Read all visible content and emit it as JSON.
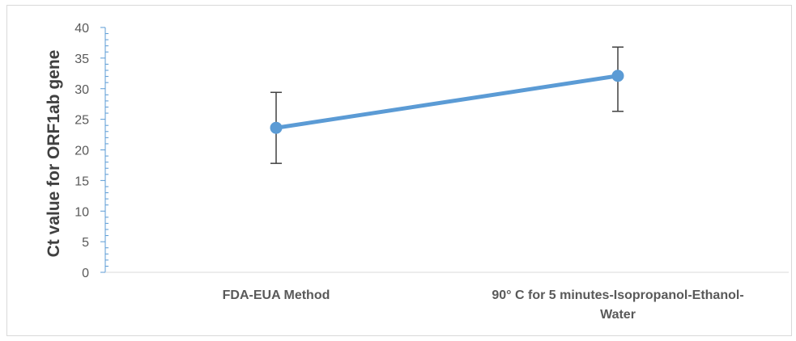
{
  "chart_data": {
    "type": "line",
    "categories": [
      "FDA-EUA Method",
      "90° C for 5 minutes-Isopropanol-Ethanol-Water"
    ],
    "category_label_lines": [
      [
        "FDA-EUA Method"
      ],
      [
        "90° C for 5 minutes-Isopropanol-Ethanol-",
        "Water"
      ]
    ],
    "series": [
      {
        "values": [
          23.6,
          32.1
        ],
        "error_low": [
          17.8,
          26.3
        ],
        "error_high": [
          29.4,
          36.8
        ],
        "color": "#5b9bd5"
      }
    ],
    "title": "",
    "xlabel": "",
    "ylabel": "Ct value for ORF1ab gene",
    "ylim": [
      0,
      40
    ],
    "yticks": [
      0,
      5,
      10,
      15,
      20,
      25,
      30,
      35,
      40
    ],
    "grid": false,
    "legend": "none",
    "axis_color": "#5b9bd5",
    "error_bar_color": "#404040"
  }
}
